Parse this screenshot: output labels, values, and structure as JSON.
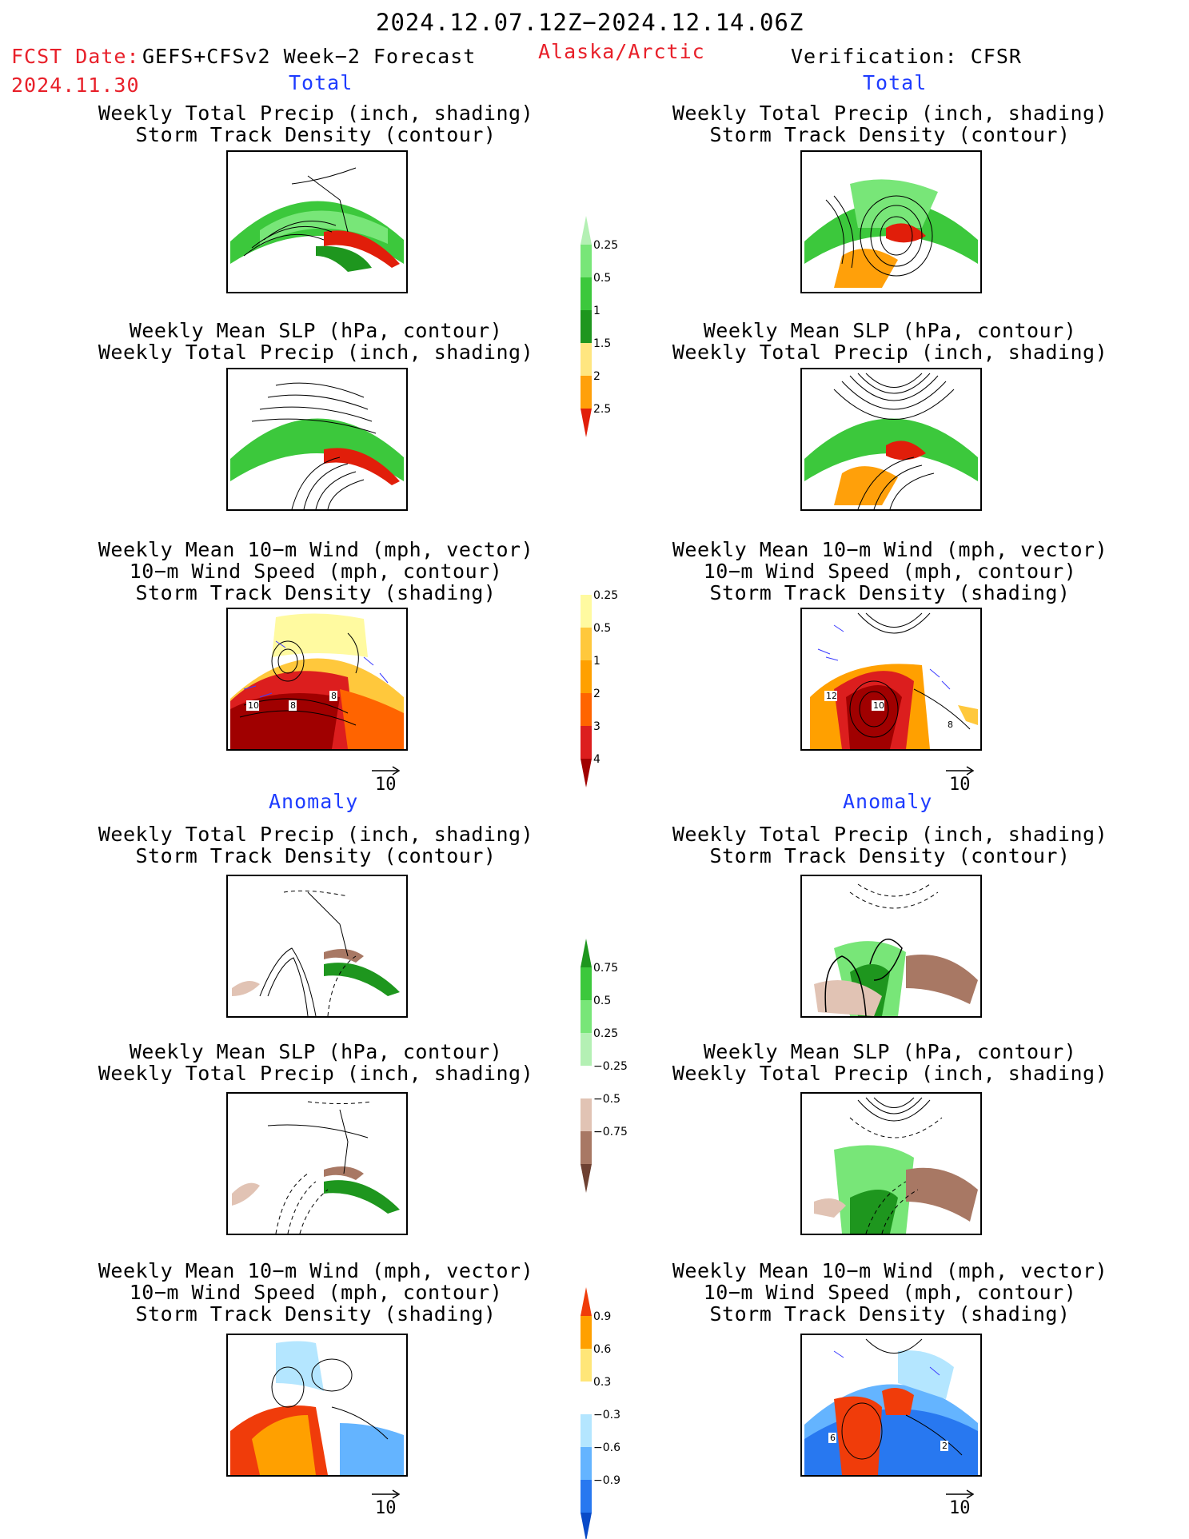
{
  "header": {
    "period": "2024.12.07.12Z−2024.12.14.06Z",
    "fcst_label": "FCST Date:",
    "model": "GEFS+CFSv2 Week−2 Forecast",
    "fcst_date": "2024.11.30",
    "region": "Alaska/Arctic",
    "verification": "Verification: CFSR"
  },
  "sections": {
    "total": "Total",
    "anomaly": "Anomaly"
  },
  "captions": {
    "precip_track": [
      "Weekly Total Precip (inch, shading)",
      "Storm Track Density (contour)"
    ],
    "slp_precip": [
      "Weekly Mean SLP (hPa, contour)",
      "Weekly Total Precip (inch, shading)"
    ],
    "wind_track": [
      "Weekly Mean 10−m Wind (mph, vector)",
      "10−m Wind Speed (mph, contour)",
      "Storm Track Density (shading)"
    ]
  },
  "vector_ref": "10",
  "panel_labels": {
    "fcst_wind_total": [
      "10",
      "8",
      "8"
    ],
    "ver_wind_total": [
      "12",
      "10",
      "8"
    ],
    "ver_wind_anom": [
      "6",
      "2"
    ]
  },
  "chart_data": [
    {
      "type": "heatmap",
      "name": "total precipitation colorbar",
      "levels": [
        "0.25",
        "0.5",
        "1",
        "1.5",
        "2",
        "2.5"
      ],
      "colors": [
        "#b4f0b4",
        "#78e678",
        "#3cc83c",
        "#1e961e",
        "#ffe680",
        "#ffa00a",
        "#e11e0a"
      ]
    },
    {
      "type": "heatmap",
      "name": "total storm track density colorbar",
      "levels": [
        "0.25",
        "0.5",
        "1",
        "2",
        "3",
        "4"
      ],
      "colors": [
        "#ffffff",
        "#fffaa0",
        "#ffc83c",
        "#ffa000",
        "#ff6400",
        "#dc1e1e",
        "#a00000"
      ]
    },
    {
      "type": "heatmap",
      "name": "precipitation anomaly colorbar",
      "levels": [
        "0.75",
        "0.5",
        "0.25",
        "−0.25",
        "−0.5",
        "−0.75"
      ],
      "colors": [
        "#1e961e",
        "#3cc83c",
        "#78e678",
        "#b4f0b4",
        "#ffffff",
        "#e1c3b4",
        "#a87864",
        "#6e4132"
      ]
    },
    {
      "type": "heatmap",
      "name": "storm track density anomaly colorbar",
      "levels": [
        "0.9",
        "0.6",
        "0.3",
        "−0.3",
        "−0.6",
        "−0.9"
      ],
      "colors": [
        "#f03c0a",
        "#ffa000",
        "#ffe678",
        "#ffffff",
        "#b4e6ff",
        "#64b4ff",
        "#2878f0",
        "#0a4bc8"
      ]
    }
  ]
}
